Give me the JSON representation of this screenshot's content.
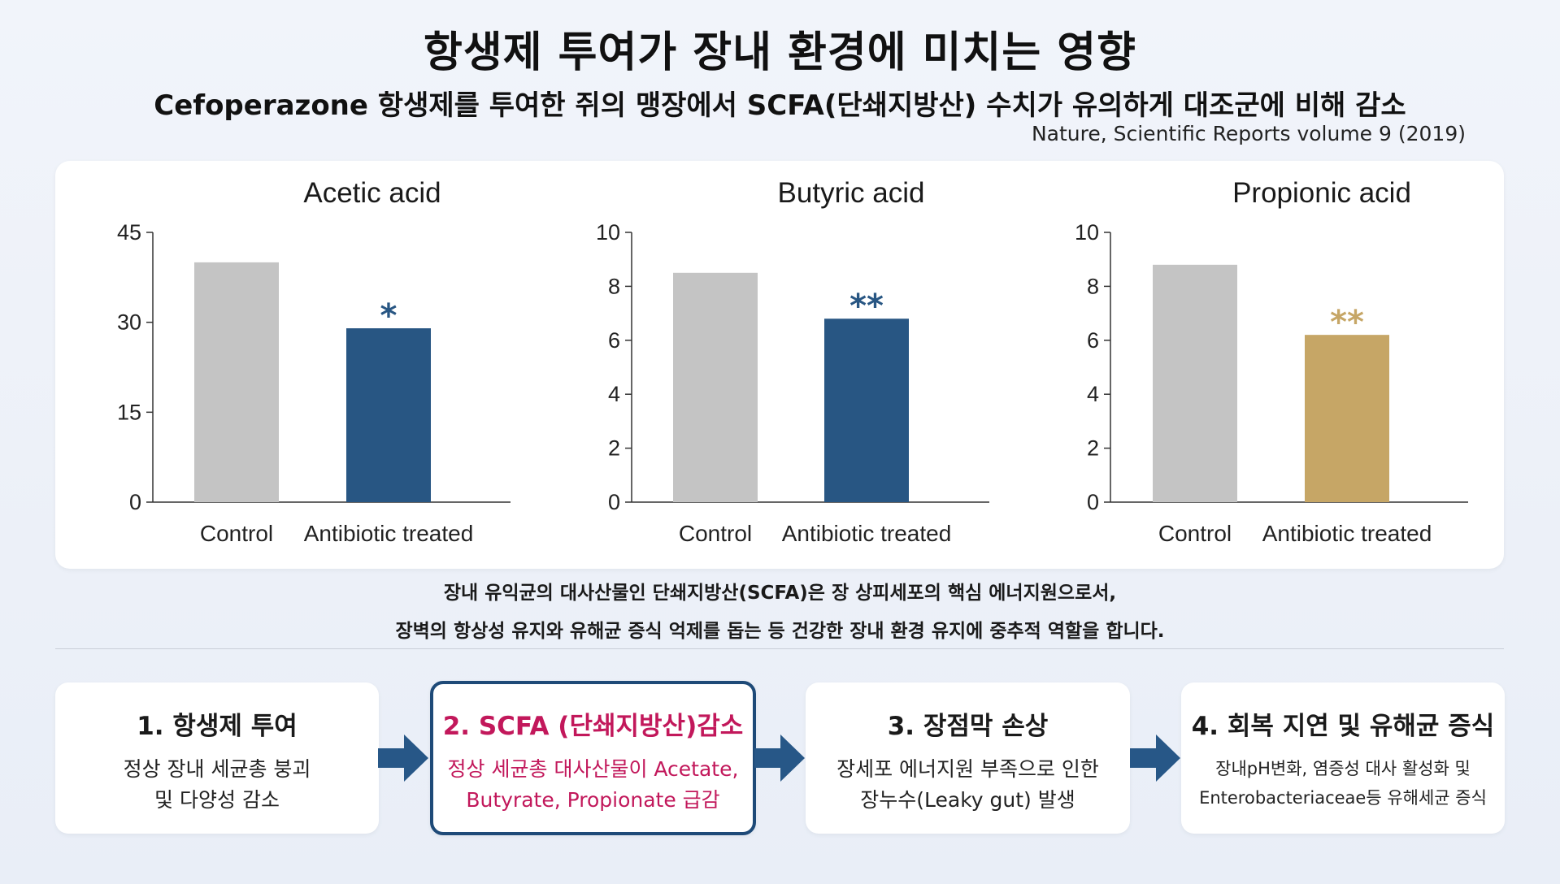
{
  "header": {
    "title": "항생제 투여가 장내 환경에 미치는 영향",
    "subtitle": "Cefoperazone 항생제를 투여한 쥐의 맹장에서 SCFA(단쇄지방산) 수치가 유의하게 대조군에 비해 감소",
    "source": "Nature, Scientific Reports volume 9 (2019)"
  },
  "colors": {
    "control": "#c4c4c4",
    "blue": "#285683",
    "gold": "#c6a666",
    "highlight_text": "#c2185b",
    "arrow": "#275787"
  },
  "chart_data": [
    {
      "type": "bar",
      "title": "Acetic acid",
      "categories": [
        "Control",
        "Antibiotic treated"
      ],
      "values": [
        40,
        29
      ],
      "ylim": [
        0,
        45
      ],
      "yticks": [
        "0",
        "15",
        "30",
        "45"
      ],
      "bar_colors": [
        "#c4c4c4",
        "#285683"
      ],
      "annotation": "*",
      "annotation_color": "#285683",
      "grid": false
    },
    {
      "type": "bar",
      "title": "Butyric acid",
      "categories": [
        "Control",
        "Antibiotic treated"
      ],
      "values": [
        8.5,
        6.8
      ],
      "ylim": [
        0,
        10
      ],
      "yticks": [
        "0",
        "2",
        "4",
        "6",
        "8",
        "10"
      ],
      "bar_colors": [
        "#c4c4c4",
        "#285683"
      ],
      "annotation": "**",
      "annotation_color": "#285683",
      "grid": false
    },
    {
      "type": "bar",
      "title": "Propionic acid",
      "categories": [
        "Control",
        "Antibiotic treated"
      ],
      "values": [
        8.8,
        6.2
      ],
      "ylim": [
        0,
        10
      ],
      "yticks": [
        "0",
        "2",
        "4",
        "6",
        "8",
        "10"
      ],
      "bar_colors": [
        "#c4c4c4",
        "#c6a666"
      ],
      "annotation": "**",
      "annotation_color": "#c6a666",
      "grid": false
    }
  ],
  "description": {
    "line1": "장내 유익균의 대사산물인 단쇄지방산(SCFA)은 장 상피세포의 핵심 에너지원으로서,",
    "line2": "장벽의 항상성 유지와 유해균 증식 억제를 돕는 등 건강한 장내 환경 유지에 중추적 역할을 합니다."
  },
  "steps": [
    {
      "title": "1. 항생제 투여",
      "text": "정상 장내 세균총 붕괴\n및 다양성 감소"
    },
    {
      "title": "2. SCFA (단쇄지방산)감소",
      "text": "정상 세균총 대사산물이 Acetate,\nButyrate, Propionate 급감"
    },
    {
      "title": "3. 장점막 손상",
      "text": "장세포 에너지원 부족으로 인한\n장누수(Leaky gut) 발생"
    },
    {
      "title": "4. 회복 지연 및 유해균 증식",
      "text": "장내pH변화, 염증성 대사 활성화 및\nEnterobacteriaceae등 유해세균 증식"
    }
  ]
}
